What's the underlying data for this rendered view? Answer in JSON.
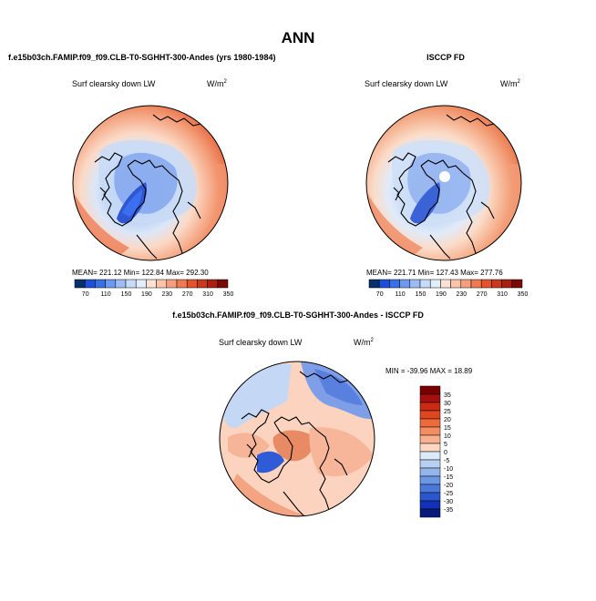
{
  "chart_data": {
    "type": "heatmap",
    "title": "ANN",
    "panels": [
      {
        "id": "model",
        "header": "f.e15b03ch.FAMIP.f09_f09.CLB-T0-SGHHT-300-Andes (yrs 1980-1984)",
        "field_label": "Surf clearsky down LW",
        "units_base": "W/m",
        "units_exp": "2",
        "stats": {
          "mean": "221.12",
          "min": "122.84",
          "max": "292.30"
        },
        "stats_text": "MEAN= 221.12   Min= 122.84   Max= 292.30",
        "projection": "north polar stereographic"
      },
      {
        "id": "obs",
        "header": "ISCCP FD",
        "field_label": "Surf clearsky down LW",
        "units_base": "W/m",
        "units_exp": "2",
        "stats": {
          "mean": "221.71",
          "min": "127.43",
          "max": "277.76"
        },
        "stats_text": "MEAN= 221.71   Min= 127.43   Max= 277.76",
        "projection": "north polar stereographic"
      },
      {
        "id": "diff",
        "header": "f.e15b03ch.FAMIP.f09_f09.CLB-T0-SGHHT-300-Andes - ISCCP FD",
        "field_label": "Surf clearsky down LW",
        "units_base": "W/m",
        "units_exp": "2",
        "stats": {
          "min": "-39.96",
          "max": "18.89"
        },
        "stats_text": "MIN = -39.96 MAX =   18.89",
        "projection": "north polar stereographic"
      }
    ],
    "abs_colorbar": {
      "labels": [
        "70",
        "110",
        "150",
        "190",
        "230",
        "270",
        "310",
        "350"
      ],
      "colors": [
        "#08306b",
        "#1f4fd8",
        "#3a6fe6",
        "#6d9af0",
        "#9dbcf4",
        "#c6dbf8",
        "#e3eefb",
        "#fde3d6",
        "#fbc4a9",
        "#f5a07c",
        "#ee7a53",
        "#e4532e",
        "#c93a1c",
        "#a92112",
        "#7a0a05"
      ]
    },
    "diff_colorbar": {
      "labels": [
        "35",
        "30",
        "25",
        "20",
        "15",
        "10",
        "5",
        "0",
        "-5",
        "-10",
        "-15",
        "-20",
        "-25",
        "-30",
        "-35"
      ],
      "colors": [
        "#7a0000",
        "#a50f0f",
        "#c92a12",
        "#e04620",
        "#ef6a3b",
        "#f48d62",
        "#f8b18f",
        "#fcd7c2",
        "#dce9f7",
        "#b9d0f2",
        "#93b5ec",
        "#6c97e4",
        "#4a78db",
        "#2b56cf",
        "#1331b8",
        "#081a7a"
      ]
    }
  }
}
